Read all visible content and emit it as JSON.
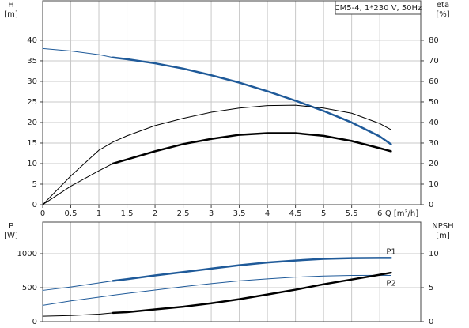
{
  "chart_data": [
    {
      "type": "line",
      "title": "CM5-4, 1*230 V, 50Hz",
      "ylabel": [
        "H",
        "[m]"
      ],
      "y2label": [
        "eta",
        "[%]"
      ],
      "xlabel": "Q [m³/h]",
      "xlim": [
        0,
        6.73
      ],
      "xticks": [
        0,
        0.5,
        1.0,
        1.5,
        2.0,
        2.5,
        3.0,
        3.5,
        4.0,
        4.5,
        5.0,
        5.5,
        6.0
      ],
      "ylim": [
        0,
        49.6
      ],
      "yticks": [
        0,
        5,
        10,
        15,
        20,
        25,
        30,
        35,
        40
      ],
      "y2lim": [
        0,
        99.2
      ],
      "y2ticks": [
        0,
        10,
        20,
        30,
        40,
        50,
        60,
        70,
        80
      ],
      "grid": true,
      "series": [
        {
          "color": "#1f5a99",
          "width": 1,
          "axis": "y",
          "x": [
            0,
            0.5,
            1,
            1.25
          ],
          "values": [
            38,
            37.4,
            36.5,
            35.8
          ]
        },
        {
          "color": "#1f5a99",
          "width": 2.5,
          "axis": "y",
          "x": [
            1.25,
            1.5,
            2,
            2.5,
            3,
            3.5,
            4,
            4.5,
            5,
            5.5,
            6,
            6.2
          ],
          "values": [
            35.8,
            35.4,
            34.4,
            33.1,
            31.5,
            29.7,
            27.6,
            25.3,
            22.8,
            20.0,
            16.6,
            14.7
          ]
        },
        {
          "color": "#000000",
          "width": 1,
          "axis": "y2",
          "x": [
            0,
            0.5,
            1,
            1.25,
            1.5,
            2,
            2.5,
            3,
            3.5,
            4,
            4.5,
            5,
            5.5,
            6,
            6.2
          ],
          "values": [
            0,
            14,
            26.5,
            30.5,
            33.5,
            38.5,
            42,
            45,
            47,
            48.2,
            48.4,
            47,
            44.5,
            39.5,
            36.5
          ]
        },
        {
          "color": "#000000",
          "width": 1,
          "axis": "y2",
          "x": [
            0,
            0.5,
            1,
            1.25
          ],
          "values": [
            0,
            9,
            16.5,
            20
          ]
        },
        {
          "color": "#000000",
          "width": 2.5,
          "axis": "y2",
          "x": [
            1.25,
            1.5,
            2,
            2.5,
            3,
            3.5,
            4,
            4.5,
            5,
            5.5,
            6,
            6.2
          ],
          "values": [
            20,
            22,
            26,
            29.5,
            32,
            34,
            34.8,
            34.8,
            33.5,
            31,
            27.5,
            26
          ]
        }
      ]
    },
    {
      "type": "line",
      "ylabel": [
        "P",
        "[W]"
      ],
      "y2label": [
        "NPSH",
        "[m]"
      ],
      "xlim": [
        0,
        6.73
      ],
      "ylim": [
        0,
        1465
      ],
      "yticks": [
        0,
        500,
        1000
      ],
      "y2lim": [
        0,
        14.65
      ],
      "y2ticks": [
        0,
        5,
        10
      ],
      "grid": true,
      "series": [
        {
          "color": "#1f5a99",
          "width": 1,
          "axis": "y",
          "x": [
            0,
            0.5,
            1,
            1.25
          ],
          "values": [
            460,
            510,
            570,
            600
          ]
        },
        {
          "name": "P1",
          "color": "#1f5a99",
          "width": 2.5,
          "axis": "y",
          "x": [
            1.25,
            1.5,
            2,
            2.5,
            3,
            3.5,
            4,
            4.5,
            5,
            5.5,
            6,
            6.2
          ],
          "values": [
            600,
            625,
            680,
            730,
            780,
            830,
            870,
            900,
            925,
            935,
            937,
            937
          ]
        },
        {
          "name": "P2",
          "color": "#1f5a99",
          "width": 1,
          "axis": "y",
          "x": [
            0,
            0.5,
            1,
            1.25,
            1.5,
            2,
            2.5,
            3,
            3.5,
            4,
            4.5,
            5,
            5.5,
            6,
            6.2
          ],
          "values": [
            240,
            305,
            360,
            390,
            415,
            465,
            515,
            560,
            600,
            630,
            655,
            672,
            680,
            682,
            680
          ]
        },
        {
          "color": "#000000",
          "width": 1,
          "axis": "y2",
          "x": [
            0,
            0.5,
            1,
            1.25
          ],
          "values": [
            0.8,
            0.9,
            1.1,
            1.3
          ]
        },
        {
          "color": "#000000",
          "width": 2.5,
          "axis": "y2",
          "x": [
            1.25,
            1.5,
            2,
            2.5,
            3,
            3.5,
            4,
            4.5,
            5,
            5.5,
            6,
            6.2
          ],
          "values": [
            1.3,
            1.4,
            1.8,
            2.2,
            2.7,
            3.3,
            4.0,
            4.7,
            5.5,
            6.2,
            6.9,
            7.2
          ]
        }
      ]
    }
  ]
}
